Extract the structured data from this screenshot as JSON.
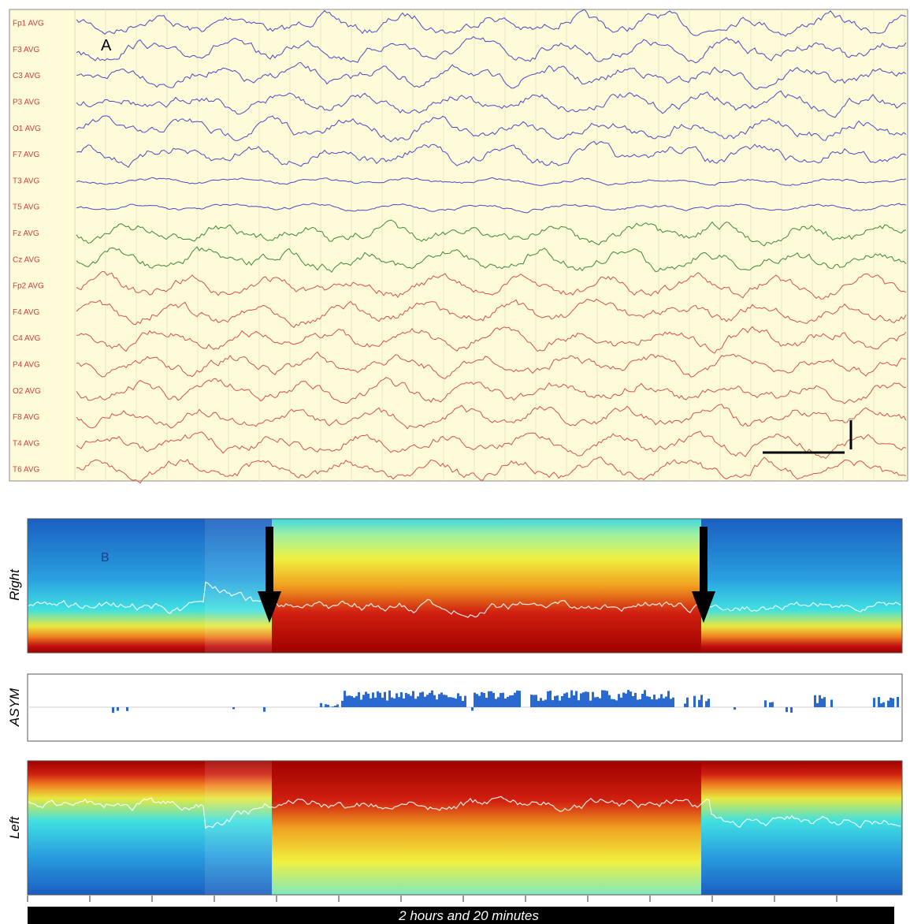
{
  "panel_a": {
    "label": "A",
    "channels": [
      "Fp1 AVG",
      "F3 AVG",
      "C3 AVG",
      "P3 AVG",
      "O1 AVG",
      "F7 AVG",
      "T3 AVG",
      "T5 AVG",
      "Fz AVG",
      "Cz AVG",
      "Fp2 AVG",
      "F4 AVG",
      "C4 AVG",
      "P4 AVG",
      "O2 AVG",
      "F8 AVG",
      "T4 AVG",
      "T6 AVG"
    ]
  },
  "panel_b": {
    "label": "B",
    "right_label": "Right",
    "asym_label": "ASYM",
    "left_label": "Left",
    "time_label": "2 hours and 20 minutes"
  }
}
